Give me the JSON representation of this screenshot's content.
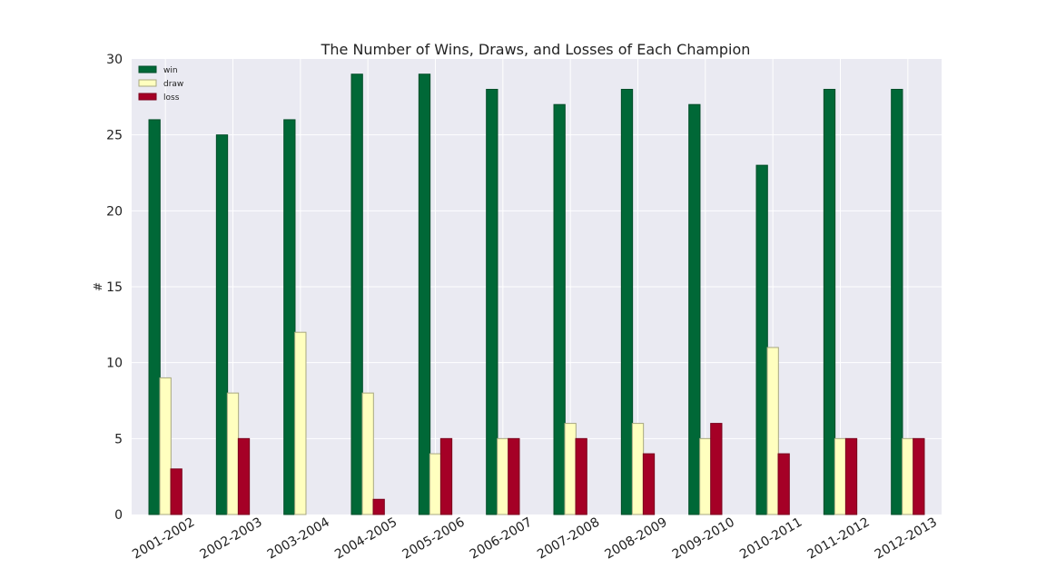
{
  "chart_data": {
    "type": "bar",
    "title": "The Number of Wins, Draws, and Losses of Each Champion",
    "xlabel": "",
    "ylabel": "#",
    "ylim": [
      0,
      30
    ],
    "yticks": [
      "0",
      "5",
      "10",
      "15",
      "20",
      "25",
      "30"
    ],
    "grid": true,
    "legend_position": "top-left",
    "categories": [
      "2001-2002",
      "2002-2003",
      "2003-2004",
      "2004-2005",
      "2005-2006",
      "2006-2007",
      "2007-2008",
      "2008-2009",
      "2009-2010",
      "2010-2011",
      "2011-2012",
      "2012-2013"
    ],
    "series": [
      {
        "name": "win",
        "color": "#006837",
        "edge": "#004d28",
        "values": [
          26,
          25,
          26,
          29,
          29,
          28,
          27,
          28,
          27,
          23,
          28,
          28
        ]
      },
      {
        "name": "draw",
        "color": "#ffffbf",
        "edge": "#a8a880",
        "values": [
          9,
          8,
          12,
          8,
          4,
          5,
          6,
          6,
          5,
          11,
          5,
          5
        ]
      },
      {
        "name": "loss",
        "color": "#a50026",
        "edge": "#7a001c",
        "values": [
          3,
          5,
          0,
          1,
          5,
          5,
          5,
          4,
          6,
          4,
          5,
          5
        ]
      }
    ]
  }
}
